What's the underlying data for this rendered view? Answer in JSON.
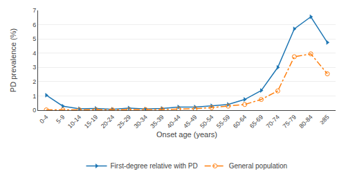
{
  "chart_data": {
    "type": "line",
    "xlabel": "Onset age (years)",
    "ylabel": "PD prevalence (%)",
    "categories": [
      "0-4",
      "5-9",
      "10-14",
      "15-19",
      "20-24",
      "25-29",
      "30-34",
      "35-39",
      "40-44",
      "45-49",
      "50-54",
      "55-59",
      "60-64",
      "65-69",
      "70-74",
      "75-79",
      "80-84",
      "≥85"
    ],
    "series": [
      {
        "name": "First-degree relative with PD",
        "marker": "triangle-right",
        "line_style": "solid",
        "values": [
          1.05,
          0.28,
          0.1,
          0.12,
          0.06,
          0.15,
          0.08,
          0.12,
          0.22,
          0.22,
          0.3,
          0.4,
          0.75,
          1.38,
          3.0,
          5.7,
          6.55,
          4.75
        ]
      },
      {
        "name": "General population",
        "marker": "circle-open",
        "line_style": "dashdot",
        "values": [
          0.02,
          0.02,
          0.02,
          0.02,
          0.02,
          0.02,
          0.04,
          0.05,
          0.08,
          0.1,
          0.18,
          0.28,
          0.4,
          0.75,
          1.35,
          3.75,
          3.95,
          2.55
        ]
      }
    ],
    "ylim": [
      0,
      7
    ],
    "yticks": [
      0,
      1,
      2,
      3,
      4,
      5,
      6,
      7
    ],
    "grid": true,
    "legend": "bottom"
  }
}
